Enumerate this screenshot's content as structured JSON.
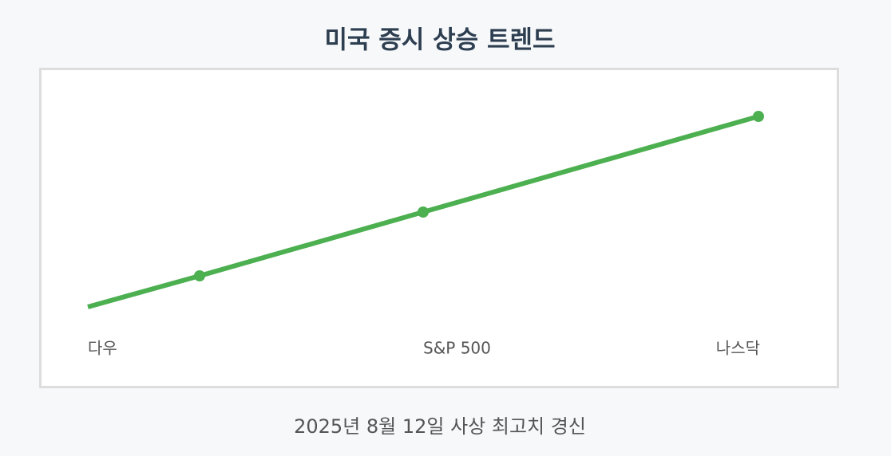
{
  "title": "미국 증시 상승 트렌드",
  "labels": [
    "다우",
    "S&P 500",
    "나스닥"
  ],
  "caption": "2025년 8월 12일 사상 최고치 경신"
}
